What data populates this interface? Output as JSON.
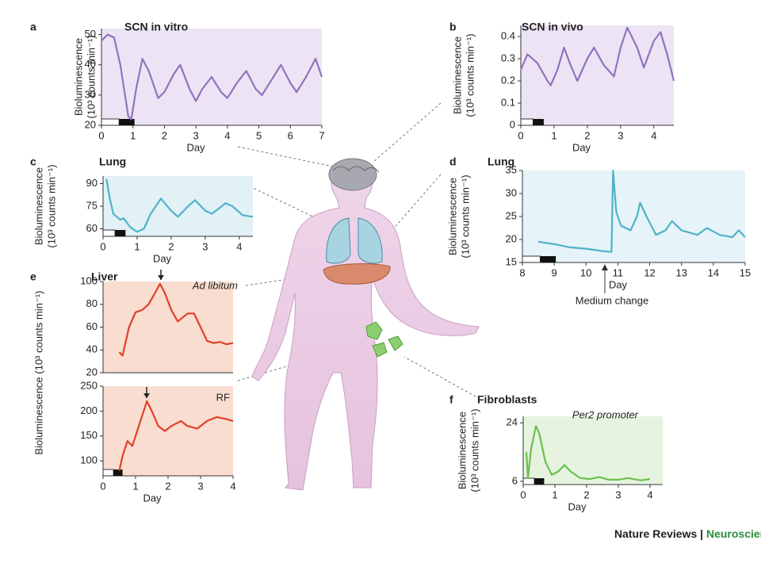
{
  "chart_data": [
    {
      "type": "line",
      "label": "a",
      "title": "SCN in vitro",
      "ylabel": [
        "Bioluminescence",
        "(10³ counts min⁻¹)"
      ],
      "xlabel": "Day",
      "xlim": [
        0,
        7
      ],
      "ylim": [
        20,
        52
      ],
      "xticks": [
        0,
        1,
        2,
        3,
        4,
        5,
        6,
        7
      ],
      "yticks": [
        20,
        30,
        40,
        50
      ],
      "series": [
        {
          "color": "#9272bf",
          "x": [
            0,
            0.2,
            0.4,
            0.6,
            0.85,
            0.95,
            1.1,
            1.3,
            1.5,
            1.8,
            2.0,
            2.3,
            2.5,
            2.8,
            3.0,
            3.2,
            3.5,
            3.8,
            4.0,
            4.3,
            4.6,
            4.9,
            5.1,
            5.4,
            5.7,
            6.0,
            6.2,
            6.5,
            6.8,
            7.0
          ],
          "values": [
            48,
            50,
            49,
            40,
            23,
            22,
            32,
            42,
            38,
            29,
            31,
            37,
            40,
            32,
            28,
            32,
            36,
            31,
            29,
            34,
            38,
            32,
            30,
            35,
            40,
            34,
            31,
            36,
            42,
            36
          ]
        }
      ]
    },
    {
      "type": "line",
      "label": "b",
      "title": "SCN in vivo",
      "ylabel": [
        "Bioluminescence",
        "(10³ counts min⁻¹)"
      ],
      "xlabel": "Day",
      "xlim": [
        0,
        4.6
      ],
      "ylim": [
        0,
        0.45
      ],
      "xticks": [
        0,
        1,
        2,
        3,
        4
      ],
      "yticks": [
        0,
        0.1,
        0.2,
        0.3,
        0.4
      ],
      "series": [
        {
          "color": "#9272bf",
          "x": [
            0,
            0.2,
            0.5,
            0.8,
            0.9,
            1.1,
            1.3,
            1.5,
            1.7,
            2.0,
            2.2,
            2.5,
            2.8,
            3.0,
            3.2,
            3.5,
            3.7,
            4.0,
            4.2,
            4.4,
            4.6
          ],
          "values": [
            0.25,
            0.32,
            0.28,
            0.2,
            0.18,
            0.25,
            0.35,
            0.27,
            0.2,
            0.3,
            0.35,
            0.27,
            0.22,
            0.35,
            0.44,
            0.35,
            0.26,
            0.38,
            0.42,
            0.32,
            0.2
          ]
        }
      ]
    },
    {
      "type": "line",
      "label": "c",
      "title": "Lung",
      "ylabel": [
        "Bioluminescence",
        "(10³ counts min⁻¹)"
      ],
      "xlabel": "Day",
      "xlim": [
        0,
        4.4
      ],
      "ylim": [
        55,
        95
      ],
      "xticks": [
        0,
        1,
        2,
        3,
        4
      ],
      "yticks": [
        60,
        75,
        90
      ],
      "series": [
        {
          "color": "#4fb3c8",
          "x": [
            0.1,
            0.2,
            0.3,
            0.4,
            0.5,
            0.6,
            0.8,
            1.0,
            1.2,
            1.4,
            1.7,
            2.0,
            2.2,
            2.5,
            2.7,
            3.0,
            3.2,
            3.6,
            3.8,
            4.1,
            4.4
          ],
          "values": [
            93,
            80,
            70,
            68,
            66,
            67,
            61,
            58,
            60,
            70,
            80,
            72,
            68,
            75,
            79,
            72,
            70,
            77,
            75,
            69,
            68
          ]
        }
      ]
    },
    {
      "type": "line",
      "label": "d",
      "title": "Lung",
      "ylabel": [
        "Bioluminescence",
        "(10³ counts min⁻¹)"
      ],
      "xlabel": "Day",
      "xlim": [
        8,
        15
      ],
      "ylim": [
        15,
        35
      ],
      "xticks": [
        8,
        9,
        10,
        11,
        12,
        13,
        14,
        15
      ],
      "yticks": [
        15,
        20,
        25,
        30,
        35
      ],
      "annotation": "Medium change",
      "series": [
        {
          "color": "#4fb3c8",
          "x": [
            8.5,
            9,
            9.5,
            10,
            10.5,
            10.8,
            10.85,
            10.95,
            11.1,
            11.4,
            11.6,
            11.7,
            11.9,
            12.2,
            12.5,
            12.7,
            13,
            13.5,
            13.8,
            14.2,
            14.6,
            14.8,
            15
          ],
          "values": [
            19.5,
            19,
            18.3,
            18,
            17.5,
            17.3,
            35,
            26,
            23,
            22,
            25,
            28,
            25,
            21,
            22,
            24,
            22,
            21,
            22.5,
            21,
            20.5,
            22,
            20.5
          ]
        }
      ]
    },
    {
      "type": "line",
      "label": "e",
      "title": "Liver",
      "ylabel": [
        "Bioluminescence (10³ counts min⁻¹)"
      ],
      "annotation": "Ad libitum",
      "xlim": [
        0,
        4
      ],
      "ylim": [
        20,
        100
      ],
      "yticks": [
        20,
        40,
        60,
        80,
        100
      ],
      "series": [
        {
          "color": "#e0402a",
          "x": [
            0.5,
            0.6,
            0.8,
            1.0,
            1.2,
            1.4,
            1.6,
            1.75,
            1.9,
            2.1,
            2.3,
            2.6,
            2.8,
            3.0,
            3.2,
            3.4,
            3.6,
            3.8,
            4.0
          ],
          "values": [
            38,
            35,
            60,
            73,
            75,
            80,
            90,
            98,
            90,
            75,
            65,
            72,
            72,
            60,
            48,
            46,
            47,
            45,
            46
          ]
        }
      ]
    },
    {
      "type": "line",
      "annotation": "RF",
      "xlabel": "Day",
      "xlim": [
        0,
        4
      ],
      "ylim": [
        70,
        250
      ],
      "xticks": [
        0,
        1,
        2,
        3,
        4
      ],
      "yticks": [
        100,
        150,
        200,
        250
      ],
      "series": [
        {
          "color": "#e0402a",
          "x": [
            0.5,
            0.6,
            0.75,
            0.9,
            1.0,
            1.2,
            1.35,
            1.5,
            1.7,
            1.9,
            2.1,
            2.4,
            2.6,
            2.9,
            3.2,
            3.5,
            3.8,
            4.0
          ],
          "values": [
            80,
            110,
            140,
            130,
            150,
            190,
            220,
            200,
            170,
            160,
            170,
            180,
            170,
            165,
            180,
            188,
            184,
            180
          ]
        }
      ]
    },
    {
      "type": "line",
      "label": "f",
      "title": "Fibroblasts",
      "ylabel": [
        "Bioluminescence",
        "(10³ counts min⁻¹)"
      ],
      "xlabel": "Day",
      "annotation": "Per2 promoter",
      "xlim": [
        0,
        4.4
      ],
      "ylim": [
        5,
        26
      ],
      "xticks": [
        0,
        1,
        2,
        3,
        4
      ],
      "yticks": [
        6,
        24
      ],
      "series": [
        {
          "color": "#6cbf4f",
          "x": [
            0.1,
            0.15,
            0.25,
            0.4,
            0.5,
            0.7,
            0.9,
            1.1,
            1.3,
            1.5,
            1.8,
            2.1,
            2.4,
            2.7,
            3.0,
            3.3,
            3.7,
            4.0
          ],
          "values": [
            15,
            7,
            16,
            23,
            21,
            12,
            8,
            9,
            11,
            9,
            7,
            6.7,
            7.3,
            6.5,
            6.5,
            7,
            6.3,
            6.7
          ]
        }
      ]
    }
  ],
  "credit": {
    "journal": "Nature Reviews",
    "separator": "|",
    "section": "Neuroscience"
  }
}
